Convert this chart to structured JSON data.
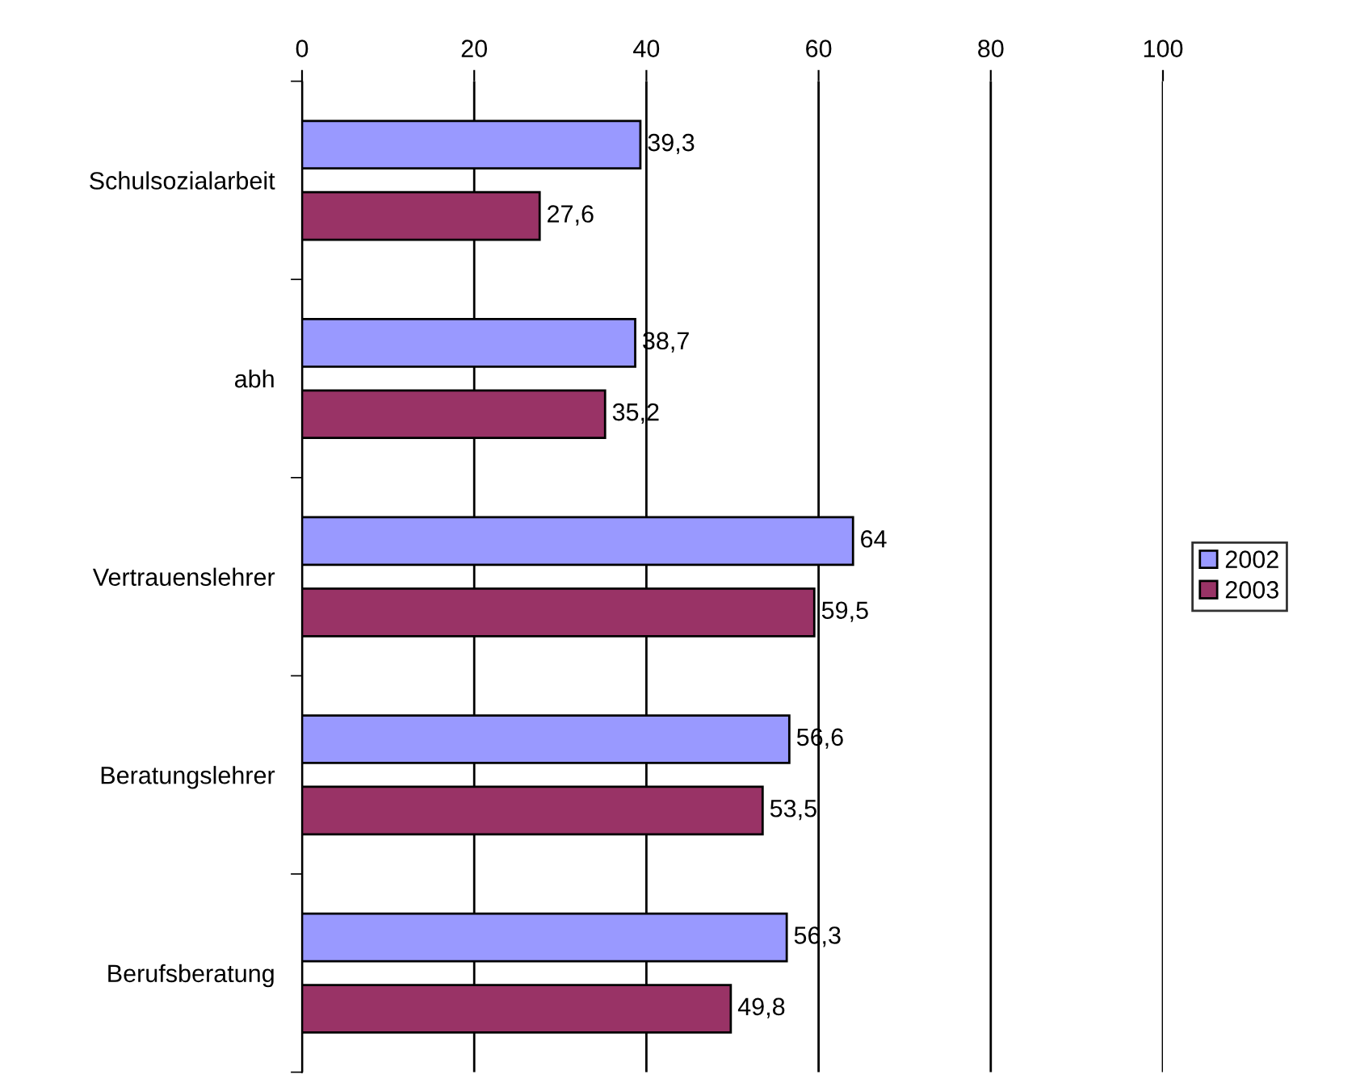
{
  "chart_data": {
    "type": "bar",
    "orientation": "horizontal",
    "categories": [
      "Schulsozialarbeit",
      "abh",
      "Vertrauenslehrer",
      "Beratungslehrer",
      "Berufsberatung"
    ],
    "series": [
      {
        "name": "2002",
        "color": "#9999ff",
        "values": [
          39.3,
          38.7,
          64,
          56.6,
          56.3
        ],
        "value_labels": [
          "39,3",
          "38,7",
          "64",
          "56,6",
          "56,3"
        ]
      },
      {
        "name": "2003",
        "color": "#993366",
        "values": [
          27.6,
          35.2,
          59.5,
          53.5,
          49.8
        ],
        "value_labels": [
          "27,6",
          "35,2",
          "59,5",
          "53,5",
          "49,8"
        ]
      }
    ],
    "xlim": [
      0,
      100
    ],
    "xticks": [
      0,
      20,
      40,
      60,
      80,
      100
    ],
    "grid": "x",
    "legend": "right"
  }
}
